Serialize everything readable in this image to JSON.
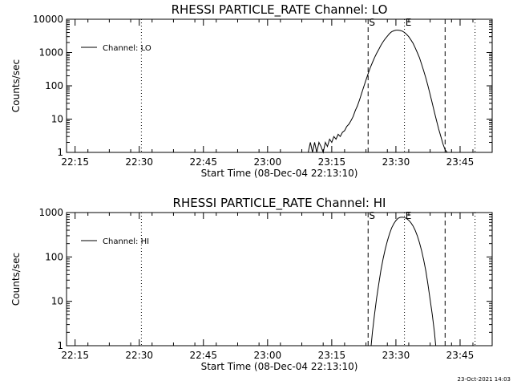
{
  "chart_data": [
    {
      "type": "line",
      "title": "RHESSI PARTICLE_RATE Channel: LO",
      "ylabel": "Counts/sec",
      "xlabel": "Start Time (08-Dec-04 22:13:10)",
      "yscale": "log",
      "ylim": [
        1,
        10000
      ],
      "yticks": [
        1,
        10,
        100,
        1000,
        10000
      ],
      "ytick_labels": [
        "1",
        "10",
        "100",
        "1000",
        "10000"
      ],
      "x_tick_labels": [
        "22:15",
        "22:30",
        "22:45",
        "23:00",
        "23:15",
        "23:30",
        "23:45"
      ],
      "x_tick_minutes": [
        2,
        17,
        32,
        47,
        62,
        77,
        92
      ],
      "xlim_minutes": [
        0,
        99.5
      ],
      "legend": "Channel: LO",
      "legend_position": "upper-left",
      "markers": [
        {
          "label": "S",
          "minute": 70.5,
          "style": "dashed"
        },
        {
          "label": "E",
          "minute": 79.0,
          "style": "dotted"
        }
      ],
      "extra_lines": [
        {
          "minute": 17.5,
          "style": "dotted"
        },
        {
          "minute": 88.5,
          "style": "dashed"
        },
        {
          "minute": 95.5,
          "style": "dotted"
        }
      ],
      "series": [
        {
          "name": "Channel: LO",
          "x": [
            56.5,
            57,
            57.5,
            58,
            58.5,
            59,
            59.5,
            60,
            60.5,
            61,
            61.5,
            62,
            62.5,
            63,
            63.5,
            64,
            64.5,
            65,
            65.5,
            66,
            66.5,
            67,
            67.5,
            68,
            68.5,
            69,
            69.5,
            70,
            70.5,
            71,
            71.5,
            72,
            72.5,
            73,
            73.5,
            74,
            74.5,
            75,
            75.5,
            76,
            76.5,
            77,
            77.5,
            78,
            78.5,
            79,
            79.5,
            80,
            80.5,
            81,
            81.5,
            82,
            82.5,
            83,
            83.5,
            84,
            84.5,
            85,
            85.5,
            86,
            86.5,
            87,
            87.5,
            88,
            88.5,
            89
          ],
          "y": [
            1,
            2,
            1,
            2,
            1,
            2,
            1.5,
            1,
            2,
            1.5,
            2.5,
            2,
            3,
            2.5,
            3.5,
            3,
            4,
            4.5,
            6,
            7,
            9,
            12,
            18,
            25,
            38,
            60,
            95,
            150,
            230,
            350,
            500,
            700,
            950,
            1250,
            1650,
            2100,
            2600,
            3100,
            3700,
            4200,
            4500,
            4700,
            4700,
            4600,
            4400,
            4000,
            3500,
            3000,
            2400,
            1900,
            1400,
            1000,
            700,
            450,
            280,
            170,
            100,
            55,
            30,
            16,
            9,
            5,
            3,
            1.8,
            1.2,
            1
          ]
        }
      ]
    },
    {
      "type": "line",
      "title": "RHESSI PARTICLE_RATE Channel: HI",
      "ylabel": "Counts/sec",
      "xlabel": "Start Time (08-Dec-04 22:13:10)",
      "yscale": "log",
      "ylim": [
        1,
        1000
      ],
      "yticks": [
        1,
        10,
        100,
        1000
      ],
      "ytick_labels": [
        "1",
        "10",
        "100",
        "1000"
      ],
      "x_tick_labels": [
        "22:15",
        "22:30",
        "22:45",
        "23:00",
        "23:15",
        "23:30",
        "23:45"
      ],
      "x_tick_minutes": [
        2,
        17,
        32,
        47,
        62,
        77,
        92
      ],
      "xlim_minutes": [
        0,
        99.5
      ],
      "legend": "Channel: HI",
      "legend_position": "upper-left",
      "markers": [
        {
          "label": "S",
          "minute": 70.5,
          "style": "dashed"
        },
        {
          "label": "E",
          "minute": 79.0,
          "style": "dotted"
        }
      ],
      "extra_lines": [
        {
          "minute": 17.5,
          "style": "dotted"
        },
        {
          "minute": 88.5,
          "style": "dashed"
        },
        {
          "minute": 95.5,
          "style": "dotted"
        }
      ],
      "series": [
        {
          "name": "Channel: HI",
          "x": [
            71.2,
            71.5,
            72,
            72.5,
            73,
            73.5,
            74,
            74.5,
            75,
            75.5,
            76,
            76.5,
            77,
            77.5,
            78,
            78.5,
            79,
            79.5,
            80,
            80.5,
            81,
            81.5,
            82,
            82.5,
            83,
            83.5,
            84,
            84.5,
            85,
            85.5,
            86,
            86.3
          ],
          "y": [
            1,
            2,
            5,
            12,
            25,
            50,
            90,
            150,
            230,
            330,
            450,
            560,
            660,
            740,
            780,
            790,
            770,
            730,
            670,
            590,
            500,
            400,
            300,
            210,
            140,
            85,
            48,
            24,
            11,
            5,
            2,
            1
          ]
        }
      ]
    }
  ],
  "footer": {
    "timestamp": "23-Oct-2021 14:03"
  }
}
